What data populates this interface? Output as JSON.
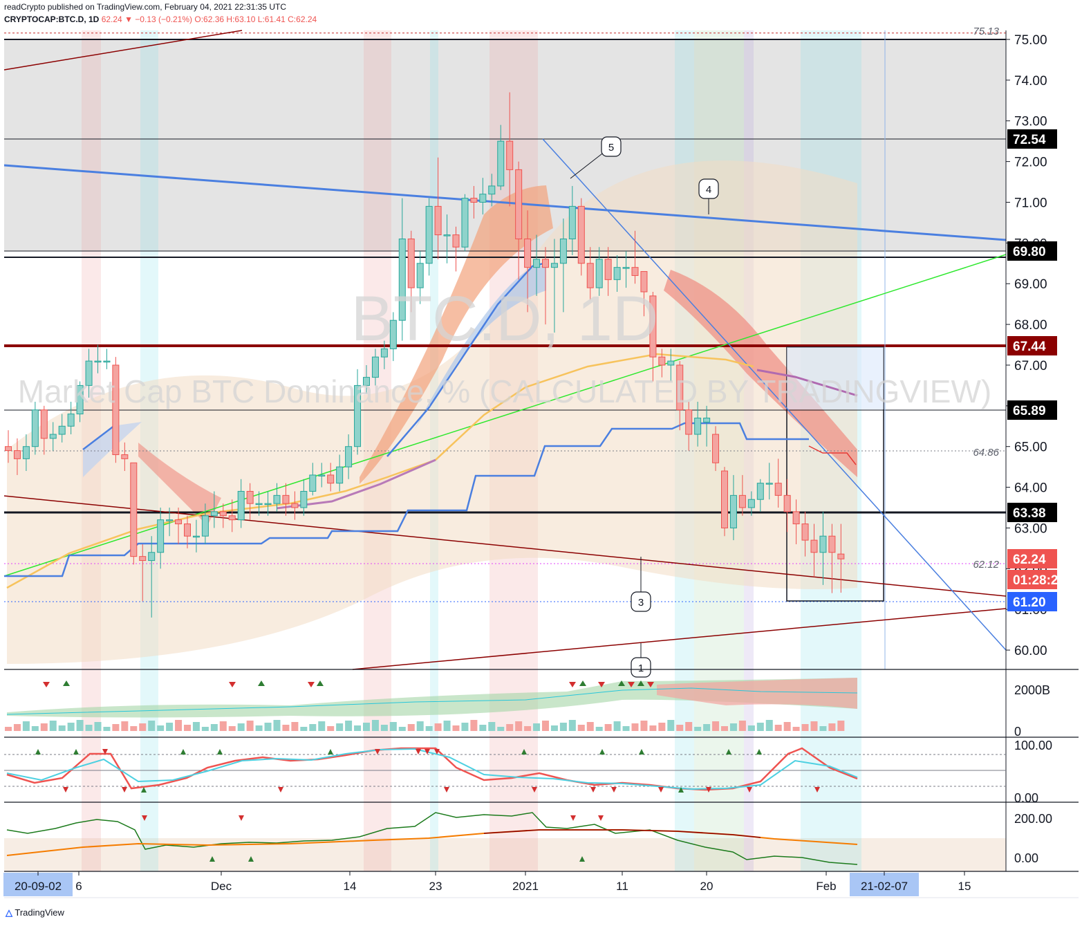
{
  "header": {
    "line1": "readCrypto published on TradingView.com, February 04, 2021 22:31:35 UTC",
    "symbol": "CRYPTOCAP:BTC.D, 1D",
    "last": "62.24",
    "change": "−0.13 (−0.21%)",
    "ohlc": "O:62.36 H:63.10 L:61.41 C:62.24"
  },
  "watermark": {
    "line1": "BTC.D, 1D",
    "line2": "Market Cap BTC Dominance, % (CALCULATED BY TRADINGVIEW)"
  },
  "footer": {
    "brand": "TradingView"
  },
  "colors": {
    "up": "#26a69a",
    "down": "#ef5350",
    "accent_blue": "#4a90e2",
    "level": "#8b0000"
  },
  "chart_data": {
    "type": "candlestick",
    "price_axis": {
      "ticks": [
        "75.00",
        "74.00",
        "73.00",
        "72.00",
        "71.00",
        "70.00",
        "69.00",
        "68.00",
        "67.00",
        "66.00",
        "65.00",
        "64.00",
        "63.00",
        "62.00",
        "61.00",
        "60.00"
      ],
      "range": [
        59.6,
        75.3
      ]
    },
    "price_tags": [
      {
        "value": "72.54",
        "style": "black"
      },
      {
        "value": "69.80",
        "style": "black"
      },
      {
        "value": "67.44",
        "style": "darkred"
      },
      {
        "value": "65.89",
        "style": "black"
      },
      {
        "value": "63.38",
        "style": "black"
      },
      {
        "value": "62.24",
        "style": "red"
      },
      {
        "value": "01:28:26",
        "style": "red"
      },
      {
        "value": "61.20",
        "style": "blue"
      }
    ],
    "level_notes": [
      "75.13",
      "64.86",
      "62.12"
    ],
    "wave_labels": [
      "5",
      "4",
      "3",
      "1"
    ],
    "time_axis": [
      "20-09-02",
      "6",
      "Dec",
      "14",
      "23",
      "2021",
      "11",
      "20",
      "Feb",
      "21-02-07",
      "15"
    ],
    "candles": [
      [
        65.0,
        64.9,
        65.4,
        64.6
      ],
      [
        64.9,
        64.7,
        65.2,
        64.3
      ],
      [
        64.7,
        65.0,
        65.3,
        64.4
      ],
      [
        65.0,
        65.9,
        66.1,
        64.8
      ],
      [
        65.9,
        65.2,
        66.0,
        64.8
      ],
      [
        65.2,
        65.3,
        65.6,
        64.9
      ],
      [
        65.3,
        65.5,
        65.8,
        65.1
      ],
      [
        65.5,
        65.8,
        66.1,
        65.3
      ],
      [
        65.8,
        66.5,
        66.6,
        65.6
      ],
      [
        66.5,
        67.1,
        67.4,
        66.2
      ],
      [
        67.1,
        67.1,
        67.5,
        66.8
      ],
      [
        67.1,
        67.1,
        67.4,
        66.9
      ],
      [
        67.0,
        64.8,
        67.2,
        64.6
      ],
      [
        64.8,
        64.7,
        65.1,
        64.4
      ],
      [
        64.6,
        62.3,
        64.6,
        62.1
      ],
      [
        62.3,
        62.2,
        62.6,
        61.2
      ],
      [
        62.2,
        62.4,
        62.8,
        60.8
      ],
      [
        62.4,
        63.2,
        63.5,
        62.0
      ],
      [
        63.2,
        63.2,
        63.5,
        62.8
      ],
      [
        63.2,
        63.1,
        63.5,
        62.6
      ],
      [
        63.1,
        62.8,
        63.3,
        62.5
      ],
      [
        62.8,
        62.8,
        63.2,
        62.4
      ],
      [
        62.8,
        63.3,
        63.6,
        62.6
      ],
      [
        63.3,
        63.4,
        63.9,
        63.0
      ],
      [
        63.4,
        63.3,
        63.6,
        63.0
      ],
      [
        63.3,
        63.2,
        63.7,
        62.9
      ],
      [
        63.2,
        63.9,
        64.2,
        63.0
      ],
      [
        63.9,
        63.6,
        64.1,
        63.2
      ],
      [
        63.6,
        63.6,
        63.9,
        63.3
      ],
      [
        63.6,
        63.6,
        63.9,
        63.3
      ],
      [
        63.6,
        63.8,
        64.1,
        63.4
      ],
      [
        63.8,
        63.6,
        64.1,
        63.3
      ],
      [
        63.6,
        63.5,
        63.9,
        63.2
      ],
      [
        63.5,
        63.9,
        64.2,
        63.3
      ],
      [
        63.9,
        64.3,
        64.6,
        63.8
      ],
      [
        64.3,
        64.3,
        64.6,
        64.0
      ],
      [
        64.3,
        64.1,
        64.6,
        63.9
      ],
      [
        64.1,
        64.5,
        64.8,
        63.9
      ],
      [
        64.5,
        65.0,
        65.3,
        64.2
      ],
      [
        65.0,
        66.5,
        66.9,
        64.8
      ],
      [
        66.5,
        66.7,
        67.0,
        66.3
      ],
      [
        66.7,
        67.2,
        67.4,
        66.5
      ],
      [
        67.2,
        67.4,
        67.6,
        66.9
      ],
      [
        67.4,
        68.1,
        68.3,
        67.1
      ],
      [
        68.1,
        70.1,
        71.1,
        67.6
      ],
      [
        70.1,
        68.9,
        70.3,
        68.3
      ],
      [
        68.9,
        69.5,
        69.8,
        68.5
      ],
      [
        69.5,
        70.9,
        71.1,
        69.2
      ],
      [
        70.9,
        70.2,
        72.1,
        69.6
      ],
      [
        70.2,
        70.2,
        70.7,
        69.5
      ],
      [
        70.2,
        69.9,
        70.4,
        69.3
      ],
      [
        69.9,
        71.1,
        71.2,
        69.8
      ],
      [
        71.1,
        71.0,
        71.4,
        70.6
      ],
      [
        71.0,
        71.2,
        71.6,
        70.7
      ],
      [
        71.2,
        71.4,
        71.7,
        70.9
      ],
      [
        71.4,
        72.5,
        72.9,
        71.3
      ],
      [
        72.5,
        71.8,
        73.7,
        70.9
      ],
      [
        71.8,
        70.1,
        72.0,
        69.1
      ],
      [
        70.1,
        69.4,
        70.8,
        68.3
      ],
      [
        69.4,
        69.6,
        70.2,
        68.7
      ],
      [
        69.6,
        69.4,
        69.9,
        68.0
      ],
      [
        69.4,
        69.5,
        70.1,
        67.8
      ],
      [
        69.5,
        70.1,
        70.6,
        68.3
      ],
      [
        70.1,
        70.9,
        71.4,
        69.7
      ],
      [
        70.9,
        69.5,
        71.1,
        69.2
      ],
      [
        69.5,
        68.9,
        69.9,
        68.6
      ],
      [
        68.9,
        69.6,
        69.9,
        68.7
      ],
      [
        69.6,
        69.1,
        69.9,
        68.7
      ],
      [
        69.1,
        69.4,
        69.7,
        68.8
      ],
      [
        69.4,
        69.4,
        69.8,
        68.9
      ],
      [
        69.4,
        69.2,
        70.3,
        69.0
      ],
      [
        69.3,
        68.8,
        69.3,
        68.2
      ],
      [
        68.7,
        67.2,
        68.8,
        66.6
      ],
      [
        67.2,
        67.0,
        67.4,
        66.7
      ],
      [
        67.0,
        67.1,
        67.4,
        66.6
      ],
      [
        67.0,
        65.9,
        67.1,
        65.4
      ],
      [
        65.9,
        65.3,
        66.1,
        64.9
      ],
      [
        65.3,
        65.7,
        66.1,
        65.0
      ],
      [
        65.6,
        65.7,
        66.0,
        65.0
      ],
      [
        65.3,
        64.6,
        65.5,
        64.4
      ],
      [
        64.4,
        63.0,
        64.5,
        62.8
      ],
      [
        63.0,
        63.8,
        64.3,
        62.7
      ],
      [
        63.8,
        63.5,
        64.3,
        63.3
      ],
      [
        63.5,
        63.7,
        63.9,
        63.3
      ],
      [
        63.7,
        64.1,
        64.2,
        63.4
      ],
      [
        64.1,
        64.1,
        64.6,
        63.7
      ],
      [
        64.1,
        63.8,
        64.7,
        63.5
      ],
      [
        63.8,
        63.4,
        64.2,
        62.9
      ],
      [
        63.4,
        63.1,
        63.7,
        62.6
      ],
      [
        63.1,
        62.7,
        63.4,
        62.3
      ],
      [
        62.7,
        62.4,
        63.1,
        61.8
      ],
      [
        62.4,
        62.8,
        63.4,
        61.6
      ],
      [
        62.8,
        62.4,
        63.1,
        61.4
      ],
      [
        62.36,
        62.24,
        63.1,
        61.41
      ]
    ],
    "volume_axis": {
      "ticks": [
        "2000B",
        "0"
      ]
    },
    "stoch_axis": {
      "ticks": [
        "100.00",
        "0.00"
      ]
    },
    "cci_axis": {
      "ticks": [
        "200.00",
        "0.00"
      ]
    }
  }
}
